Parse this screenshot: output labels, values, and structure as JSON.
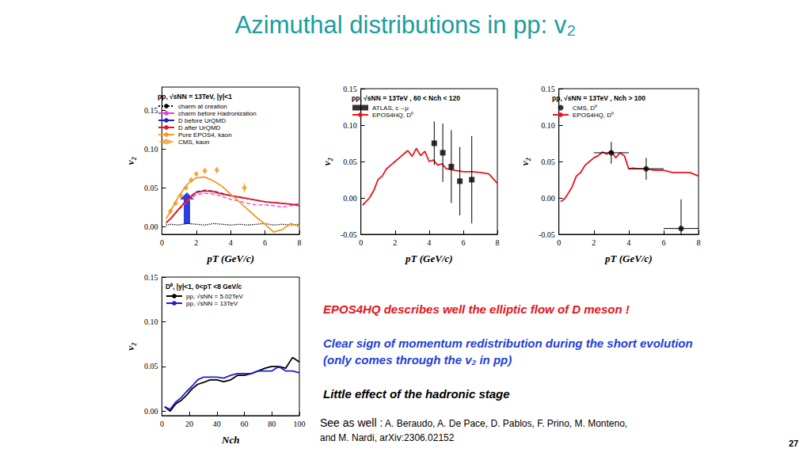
{
  "title": "Azimuthal distributions in pp: v₂",
  "text": {
    "highlight": "EPOS4HQ describes well the elliptic flow of D meson !",
    "observation": [
      "Clear sign of  momentum redistribution during the short evolution",
      "(only comes through the v₂ in pp)"
    ],
    "conclusion": "Little effect of the hadronic stage",
    "reference_intro": "See as well :",
    "reference_lines": [
      "A. Beraudo, A. De Pace, D. Pablos, F. Prino, M. Monteno,",
      "and M. Nardi, arXiv:2306.02152"
    ]
  },
  "page_number": "27",
  "chart_data": [
    {
      "type": "line",
      "title": "pp, √sNN = 13TeV, |y|<1",
      "xlabel": "pT (GeV/c)",
      "ylabel": "v₂",
      "xlim": [
        0,
        8
      ],
      "xticks": [
        0,
        2,
        4,
        6,
        8
      ],
      "ylim": [
        -0.01,
        0.18
      ],
      "yticks": [
        {
          "value": 0,
          "label": "0.00"
        },
        {
          "value": 0.05,
          "label": "0.05"
        },
        {
          "value": 0.1,
          "label": "0.10"
        },
        {
          "value": 0.15,
          "label": "0.15"
        }
      ],
      "grid": false,
      "legend": "upper left",
      "series": [
        {
          "name": "charm at creation",
          "type": "line",
          "line_style": "dotted",
          "color": "#000000",
          "x": [
            0.25,
            0.5,
            1,
            1.5,
            2,
            2.5,
            3,
            3.5,
            4,
            4.5,
            5,
            5.5,
            6,
            6.5,
            7,
            7.5,
            8
          ],
          "values": [
            0.002,
            0.003,
            0.002,
            0.004,
            0.003,
            0.002,
            0.004,
            0.003,
            0.002,
            0.003,
            0.002,
            0.003,
            0.004,
            0.002,
            0.003,
            0.002,
            0.003
          ]
        },
        {
          "name": "charm before Hadronization",
          "type": "line",
          "line_style": "dashed",
          "color": "#e040e0",
          "x": [
            0.25,
            0.5,
            1,
            1.5,
            2,
            2.5,
            3,
            3.5,
            4,
            4.5,
            5,
            5.5,
            6,
            6.5,
            7,
            7.5,
            8
          ],
          "values": [
            0.005,
            0.01,
            0.022,
            0.033,
            0.041,
            0.043,
            0.042,
            0.039,
            0.035,
            0.033,
            0.03,
            0.028,
            0.028,
            0.027,
            0.025,
            0.027,
            0.03
          ]
        },
        {
          "name": "D before UrQMD",
          "type": "line",
          "line_style": "dashed",
          "color": "#2020c0",
          "x": [
            0.25,
            0.5,
            1,
            1.5,
            2,
            2.5,
            3,
            3.5,
            4,
            4.5,
            5,
            5.5,
            6,
            6.5,
            7,
            7.5,
            8
          ],
          "values": [
            0.005,
            0.01,
            0.023,
            0.036,
            0.045,
            0.047,
            0.046,
            0.043,
            0.04,
            0.038,
            0.036,
            0.034,
            0.032,
            0.031,
            0.03,
            0.029,
            0.028
          ]
        },
        {
          "name": "D after UrQMD",
          "type": "line",
          "line_style": "solid",
          "color": "#e8141c",
          "x": [
            0.25,
            0.5,
            1,
            1.5,
            2,
            2.5,
            3,
            3.5,
            4,
            4.5,
            5,
            5.5,
            6,
            6.5,
            7,
            7.5,
            8
          ],
          "values": [
            0.005,
            0.01,
            0.023,
            0.035,
            0.044,
            0.046,
            0.045,
            0.042,
            0.04,
            0.038,
            0.036,
            0.034,
            0.032,
            0.031,
            0.03,
            0.029,
            0.027
          ]
        },
        {
          "name": "Pure EPOS4, kaon",
          "type": "line",
          "line_style": "solid",
          "color": "#f29a25",
          "x": [
            0.25,
            0.5,
            1,
            1.5,
            2,
            2.5,
            3,
            3.5,
            4,
            4.5,
            5,
            5.5,
            6,
            6.5,
            7,
            7.5,
            8
          ],
          "values": [
            0.01,
            0.02,
            0.04,
            0.055,
            0.063,
            0.064,
            0.059,
            0.052,
            0.042,
            0.032,
            0.022,
            0.012,
            0.003,
            -0.007,
            -0.004,
            0.004,
            0.0
          ]
        },
        {
          "name": "CMS, kaon",
          "type": "scatter",
          "marker": "diamond",
          "color": "#f29a25",
          "x": [
            0.5,
            0.8,
            1.1,
            1.4,
            1.7,
            2.0,
            2.5,
            3.2,
            4.8
          ],
          "values": [
            0.02,
            0.03,
            0.04,
            0.05,
            0.06,
            0.068,
            0.072,
            0.073,
            0.05
          ],
          "y_err": [
            0.003,
            0.003,
            0.003,
            0.003,
            0.003,
            0.003,
            0.004,
            0.004,
            0.006
          ]
        }
      ]
    },
    {
      "type": "line",
      "title": "pp, √sNN = 13TeV , 60 < Nch < 120",
      "xlabel": "pT (GeV/c)",
      "ylabel": "v₂",
      "xlim": [
        0,
        8
      ],
      "xticks": [
        0,
        2,
        4,
        6,
        8
      ],
      "ylim": [
        -0.05,
        0.15
      ],
      "yticks": [
        {
          "value": -0.05,
          "label": "-0.05"
        },
        {
          "value": 0,
          "label": "0.00"
        },
        {
          "value": 0.05,
          "label": "0.05"
        },
        {
          "value": 0.1,
          "label": "0.10"
        },
        {
          "value": 0.15,
          "label": "0.15"
        }
      ],
      "grid": false,
      "legend": "upper left",
      "series": [
        {
          "name": "ATLAS, c→μ",
          "type": "scatter",
          "marker": "square",
          "color": "#000000",
          "x": [
            4.3,
            4.8,
            5.3,
            5.8,
            6.5
          ],
          "values": [
            0.075,
            0.062,
            0.043,
            0.023,
            0.025
          ],
          "y_err": [
            0.03,
            0.04,
            0.05,
            0.047,
            0.06
          ]
        },
        {
          "name": "EPOS4HQ, D⁰",
          "type": "line",
          "line_style": "solid",
          "color": "#e8141c",
          "x": [
            0.1,
            0.3,
            0.5,
            0.75,
            1,
            1.25,
            1.5,
            1.75,
            2,
            2.25,
            2.5,
            2.75,
            3,
            3.25,
            3.5,
            3.75,
            4,
            4.25,
            4.5,
            4.75,
            5,
            5.5,
            6,
            6.5,
            7,
            7.5,
            8
          ],
          "values": [
            -0.01,
            -0.005,
            0.0,
            0.01,
            0.025,
            0.03,
            0.04,
            0.045,
            0.05,
            0.055,
            0.06,
            0.065,
            0.057,
            0.068,
            0.058,
            0.064,
            0.05,
            0.052,
            0.045,
            0.047,
            0.04,
            0.038,
            0.036,
            0.036,
            0.035,
            0.033,
            0.02
          ]
        }
      ]
    },
    {
      "type": "line",
      "title": "pp, √sNN = 13TeV , Nch > 100",
      "xlabel": "pT (GeV/c)",
      "ylabel": "v₂",
      "xlim": [
        0,
        8
      ],
      "xticks": [
        0,
        2,
        4,
        6,
        8
      ],
      "ylim": [
        -0.05,
        0.15
      ],
      "yticks": [
        {
          "value": -0.05,
          "label": "-0.05"
        },
        {
          "value": 0,
          "label": "0.00"
        },
        {
          "value": 0.05,
          "label": "0.05"
        },
        {
          "value": 0.1,
          "label": "0.10"
        },
        {
          "value": 0.15,
          "label": "0.15"
        }
      ],
      "grid": false,
      "legend": "upper left",
      "series": [
        {
          "name": "CMS, D⁰",
          "type": "scatter",
          "marker": "circle",
          "color": "#000000",
          "x": [
            3,
            5,
            7
          ],
          "values": [
            0.062,
            0.04,
            -0.042
          ],
          "x_err": [
            1,
            1,
            1
          ],
          "y_err": [
            0.015,
            0.015,
            0.04
          ]
        },
        {
          "name": "EPOS4HQ, D⁰",
          "type": "line",
          "line_style": "solid",
          "color": "#e8141c",
          "x": [
            0.1,
            0.3,
            0.5,
            0.75,
            1,
            1.25,
            1.5,
            1.75,
            2,
            2.25,
            2.5,
            2.75,
            3,
            3.25,
            3.5,
            3.75,
            4,
            4.25,
            4.5,
            4.75,
            5,
            5.5,
            6,
            6.5,
            7,
            7.5,
            8
          ],
          "values": [
            -0.005,
            -0.002,
            0.005,
            0.015,
            0.03,
            0.035,
            0.045,
            0.05,
            0.055,
            0.058,
            0.063,
            0.06,
            0.065,
            0.055,
            0.062,
            0.058,
            0.04,
            0.041,
            0.04,
            0.04,
            0.04,
            0.038,
            0.038,
            0.035,
            0.035,
            0.035,
            0.03
          ]
        }
      ]
    },
    {
      "type": "line",
      "title": "D⁰, |y|<1, 0<pT <8 GeV/c",
      "xlabel": "Nch",
      "ylabel": "v₂",
      "xlim": [
        0,
        100
      ],
      "xticks": [
        0,
        20,
        40,
        60,
        80,
        100
      ],
      "ylim": [
        -0.005,
        0.15
      ],
      "yticks": [
        {
          "value": 0,
          "label": "0.00"
        },
        {
          "value": 0.05,
          "label": "0.05"
        },
        {
          "value": 0.1,
          "label": "0.10"
        },
        {
          "value": 0.15,
          "label": "0.15"
        }
      ],
      "grid": false,
      "legend": "upper left",
      "series": [
        {
          "name": "pp, √sNN = 5.02TeV",
          "type": "line",
          "line_style": "solid",
          "color": "#000000",
          "x": [
            2,
            6,
            10,
            14,
            18,
            22,
            26,
            30,
            35,
            40,
            45,
            50,
            55,
            60,
            65,
            70,
            75,
            80,
            85,
            90,
            95,
            100
          ],
          "values": [
            0.005,
            0.0,
            0.008,
            0.012,
            0.018,
            0.025,
            0.03,
            0.032,
            0.035,
            0.035,
            0.033,
            0.035,
            0.04,
            0.04,
            0.042,
            0.045,
            0.048,
            0.05,
            0.05,
            0.048,
            0.06,
            0.055
          ]
        },
        {
          "name": "pp, √sNN = 13TeV",
          "type": "line",
          "line_style": "solid",
          "color": "#1f1fcc",
          "x": [
            2,
            6,
            10,
            14,
            18,
            22,
            26,
            30,
            35,
            40,
            45,
            50,
            55,
            60,
            65,
            70,
            75,
            80,
            85,
            90,
            95,
            100
          ],
          "values": [
            0.005,
            0.002,
            0.01,
            0.015,
            0.022,
            0.028,
            0.035,
            0.038,
            0.038,
            0.038,
            0.037,
            0.04,
            0.042,
            0.042,
            0.042,
            0.045,
            0.045,
            0.045,
            0.05,
            0.045,
            0.045,
            0.043
          ]
        }
      ]
    }
  ]
}
